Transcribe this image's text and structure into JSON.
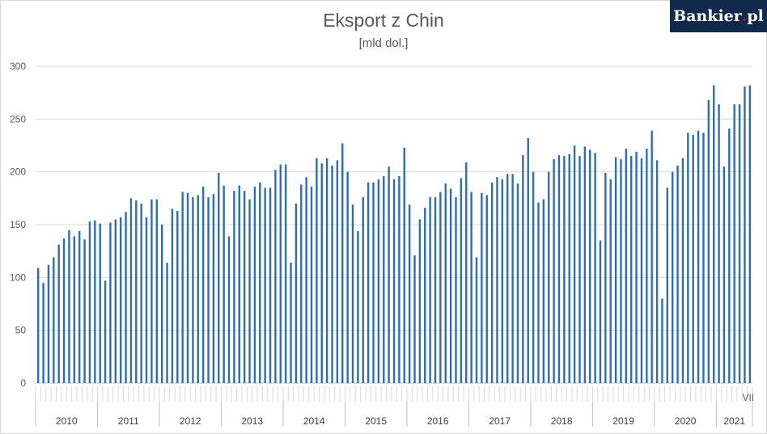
{
  "header": {
    "title": "Eksport z Chin",
    "subtitle": "[mld dol.]",
    "logo_main": "Bankier",
    "logo_dot": ".",
    "logo_suffix": "pl"
  },
  "colors": {
    "bar": "#2e6db4",
    "grid": "#d9d9d9",
    "axis": "#bfbfbf",
    "logo_bg": "#13294b"
  },
  "chart_data": {
    "type": "bar",
    "title": "Eksport z Chin",
    "subtitle": "[mld dol.]",
    "xlabel": "",
    "ylabel": "",
    "ylim": [
      0,
      300
    ],
    "yticks": [
      0,
      50,
      100,
      150,
      200,
      250,
      300
    ],
    "grid": true,
    "legend": "none",
    "years": [
      "2010",
      "2011",
      "2012",
      "2013",
      "2014",
      "2015",
      "2016",
      "2017",
      "2018",
      "2019",
      "2020",
      "2021"
    ],
    "last_label": "VII",
    "values": [
      109,
      95,
      112,
      119,
      131,
      137,
      145,
      139,
      144,
      136,
      153,
      154,
      151,
      97,
      152,
      155,
      157,
      162,
      175,
      173,
      170,
      157,
      174,
      174,
      150,
      114,
      165,
      163,
      181,
      180,
      176,
      178,
      186,
      176,
      179,
      199,
      187,
      139,
      182,
      187,
      182,
      174,
      186,
      190,
      185,
      185,
      202,
      207,
      207,
      114,
      170,
      188,
      195,
      186,
      213,
      208,
      213,
      206,
      211,
      227,
      200,
      169,
      144,
      176,
      190,
      190,
      193,
      196,
      205,
      193,
      196,
      223,
      169,
      121,
      155,
      166,
      176,
      176,
      181,
      189,
      184,
      176,
      194,
      209,
      181,
      119,
      180,
      178,
      190,
      195,
      193,
      198,
      198,
      189,
      216,
      232,
      200,
      171,
      174,
      200,
      212,
      216,
      215,
      217,
      225,
      215,
      224,
      221,
      218,
      135,
      199,
      193,
      214,
      212,
      222,
      215,
      219,
      213,
      222,
      239,
      211,
      80,
      185,
      200,
      206,
      213,
      237,
      235,
      239,
      237,
      268,
      282,
      264,
      205,
      241,
      264,
      264,
      281,
      282
    ]
  }
}
